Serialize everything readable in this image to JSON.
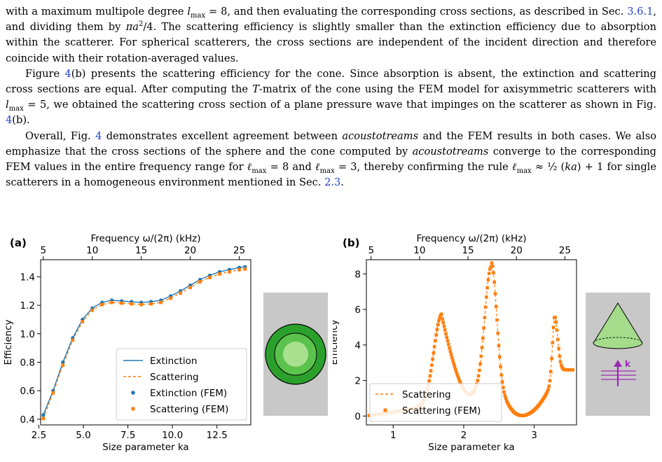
{
  "text": {
    "p1": [
      {
        "t": "with a maximum multipole degree "
      },
      {
        "t": "l",
        "c": "math"
      },
      {
        "t": "max",
        "sub": true
      },
      {
        "t": " = 8, and then evaluating the corresponding cross sections, as described in Sec. "
      },
      {
        "t": "3.6.1",
        "c": "ref"
      },
      {
        "t": ", and dividing them by "
      },
      {
        "t": "πa",
        "c": "math"
      },
      {
        "t": "2",
        "sup": true
      },
      {
        "t": "/4. The scattering efficiency is slightly smaller than the extinction efficiency due to absorption within the scatterer. For spherical scatterers, the cross sections are independent of the incident direction and therefore coincide with their rotation-averaged values."
      }
    ],
    "p2": [
      {
        "t": "Figure "
      },
      {
        "t": "4",
        "c": "ref"
      },
      {
        "t": "(b) presents the scattering efficiency for the cone. Since absorption is absent, the extinction and scattering cross sections are equal. After computing the "
      },
      {
        "t": "T",
        "c": "math"
      },
      {
        "t": "-matrix of the cone using the FEM model for axisymmetric scatterers with "
      },
      {
        "t": "l",
        "c": "math"
      },
      {
        "t": "max",
        "sub": true
      },
      {
        "t": " = 5, we obtained the scattering cross section of a plane pressure wave that impinges on the scatterer as shown in Fig. "
      },
      {
        "t": "4",
        "c": "ref"
      },
      {
        "t": "(b)."
      }
    ],
    "p3": [
      {
        "t": "Overall, Fig. "
      },
      {
        "t": "4",
        "c": "ref"
      },
      {
        "t": " demonstrates excellent agreement between "
      },
      {
        "t": "acoustotreams",
        "c": "em"
      },
      {
        "t": " and the FEM results in both cases. We also emphasize that the cross sections of the sphere and the cone computed by "
      },
      {
        "t": "acoustotreams",
        "c": "em"
      },
      {
        "t": " converge to the corresponding FEM values in the entire frequency range for "
      },
      {
        "t": "ℓ",
        "c": "math"
      },
      {
        "t": "max",
        "sub": true
      },
      {
        "t": " = 8 and "
      },
      {
        "t": "ℓ",
        "c": "math"
      },
      {
        "t": "max",
        "sub": true
      },
      {
        "t": " = 3, thereby confirming the rule "
      },
      {
        "t": "ℓ",
        "c": "math"
      },
      {
        "t": "max",
        "sub": true
      },
      {
        "t": " ≈ ½ ("
      },
      {
        "t": "ka",
        "c": "math"
      },
      {
        "t": ") + 1 for single scatterers in a homogeneous environment mentioned in Sec. "
      },
      {
        "t": "2.3",
        "c": "ref"
      },
      {
        "t": "."
      }
    ]
  },
  "colors": {
    "extinction": "#1f77b4",
    "scattering": "#ff7f0e",
    "ref": "#1f3fcf",
    "inset_bg": "#c8c8c8",
    "sphere_dark": "#2ca02c",
    "cone_green": "#a4dc8c",
    "wave": "#9b2bb3"
  },
  "chart_data": [
    {
      "type": "line",
      "panel_label": "(a)",
      "title": "",
      "xlabel": "Size parameter ka",
      "ylabel": "Efficiency",
      "top_xlabel": "Frequency ω/(2π) (kHz)",
      "xlim": [
        2.6,
        14.4
      ],
      "ylim": [
        0.36,
        1.52
      ],
      "xticks": [
        2.5,
        5.0,
        7.5,
        10.0,
        12.5
      ],
      "xtick_labels": [
        "2.5",
        "5.0",
        "7.5",
        "10.0",
        "12.5"
      ],
      "yticks": [
        0.4,
        0.6,
        0.8,
        1.0,
        1.2,
        1.4
      ],
      "ytick_labels": [
        "0.4",
        "0.6",
        "0.8",
        "1.0",
        "1.2",
        "1.4"
      ],
      "top_ticks_ka": [
        2.75,
        5.5,
        8.25,
        11.0,
        13.75
      ],
      "top_tick_labels": [
        "5",
        "10",
        "15",
        "20",
        "25"
      ],
      "grid": false,
      "legend_position": "lower-right",
      "series": [
        {
          "name": "Extinction",
          "style": "line",
          "x": [
            2.75,
            3.3,
            3.85,
            4.4,
            4.95,
            5.5,
            6.05,
            6.6,
            7.15,
            7.7,
            8.25,
            8.8,
            9.35,
            9.9,
            10.45,
            11.0,
            11.55,
            12.1,
            12.65,
            13.2,
            13.75,
            14.08
          ],
          "values": [
            0.43,
            0.6,
            0.8,
            0.97,
            1.1,
            1.18,
            1.22,
            1.235,
            1.23,
            1.225,
            1.22,
            1.225,
            1.235,
            1.265,
            1.3,
            1.34,
            1.38,
            1.41,
            1.435,
            1.45,
            1.465,
            1.47
          ]
        },
        {
          "name": "Scattering",
          "style": "dashed",
          "x": [
            2.75,
            3.3,
            3.85,
            4.4,
            4.95,
            5.5,
            6.05,
            6.6,
            7.15,
            7.7,
            8.25,
            8.8,
            9.35,
            9.9,
            10.45,
            11.0,
            11.55,
            12.1,
            12.65,
            13.2,
            13.75,
            14.08
          ],
          "values": [
            0.405,
            0.585,
            0.78,
            0.955,
            1.085,
            1.165,
            1.205,
            1.22,
            1.215,
            1.21,
            1.205,
            1.21,
            1.22,
            1.25,
            1.285,
            1.325,
            1.365,
            1.395,
            1.42,
            1.435,
            1.45,
            1.455
          ]
        },
        {
          "name": "Extinction (FEM)",
          "style": "circles",
          "x": [
            2.75,
            3.3,
            3.85,
            4.4,
            4.95,
            5.5,
            6.05,
            6.6,
            7.15,
            7.7,
            8.25,
            8.8,
            9.35,
            9.9,
            10.45,
            11.0,
            11.55,
            12.1,
            12.65,
            13.2,
            13.75,
            14.08
          ],
          "values": [
            0.43,
            0.6,
            0.8,
            0.97,
            1.1,
            1.18,
            1.22,
            1.235,
            1.23,
            1.225,
            1.22,
            1.225,
            1.235,
            1.265,
            1.3,
            1.34,
            1.38,
            1.41,
            1.435,
            1.45,
            1.465,
            1.47
          ]
        },
        {
          "name": "Scattering (FEM)",
          "style": "squares",
          "x": [
            2.75,
            3.3,
            3.85,
            4.4,
            4.95,
            5.5,
            6.05,
            6.6,
            7.15,
            7.7,
            8.25,
            8.8,
            9.35,
            9.9,
            10.45,
            11.0,
            11.55,
            12.1,
            12.65,
            13.2,
            13.75,
            14.08
          ],
          "values": [
            0.405,
            0.585,
            0.78,
            0.955,
            1.085,
            1.165,
            1.205,
            1.22,
            1.215,
            1.21,
            1.205,
            1.21,
            1.22,
            1.25,
            1.285,
            1.325,
            1.365,
            1.395,
            1.42,
            1.435,
            1.45,
            1.455
          ]
        }
      ]
    },
    {
      "type": "line",
      "panel_label": "(b)",
      "title": "",
      "xlabel": "Size parameter ka",
      "ylabel": "Efficiency",
      "top_xlabel": "Frequency ω/(2π) (kHz)",
      "xlim": [
        0.62,
        3.6
      ],
      "ylim": [
        -0.5,
        8.8
      ],
      "xticks": [
        1,
        2,
        3
      ],
      "xtick_labels": [
        "1",
        "2",
        "3"
      ],
      "yticks": [
        0,
        2,
        4,
        6,
        8
      ],
      "ytick_labels": [
        "0",
        "2",
        "4",
        "6",
        "8"
      ],
      "top_ticks_ka": [
        0.687,
        1.374,
        2.061,
        2.748,
        3.435
      ],
      "top_tick_labels": [
        "5",
        "10",
        "15",
        "20",
        "25"
      ],
      "grid": false,
      "legend_position": "lower-left",
      "peaks": [
        {
          "x": 1.69,
          "y": 5.6
        },
        {
          "x": 2.39,
          "y": 8.4
        },
        {
          "x": 3.29,
          "y": 5.6
        }
      ],
      "minima": [
        {
          "x": 2.1,
          "y": 1.2
        },
        {
          "x": 2.82,
          "y": 0.0
        }
      ],
      "x_end": 3.56,
      "y_start": 0.02,
      "y_end": 2.6,
      "series": [
        {
          "name": "Scattering",
          "style": "dashed"
        },
        {
          "name": "Scattering (FEM)",
          "style": "squares"
        }
      ]
    }
  ]
}
